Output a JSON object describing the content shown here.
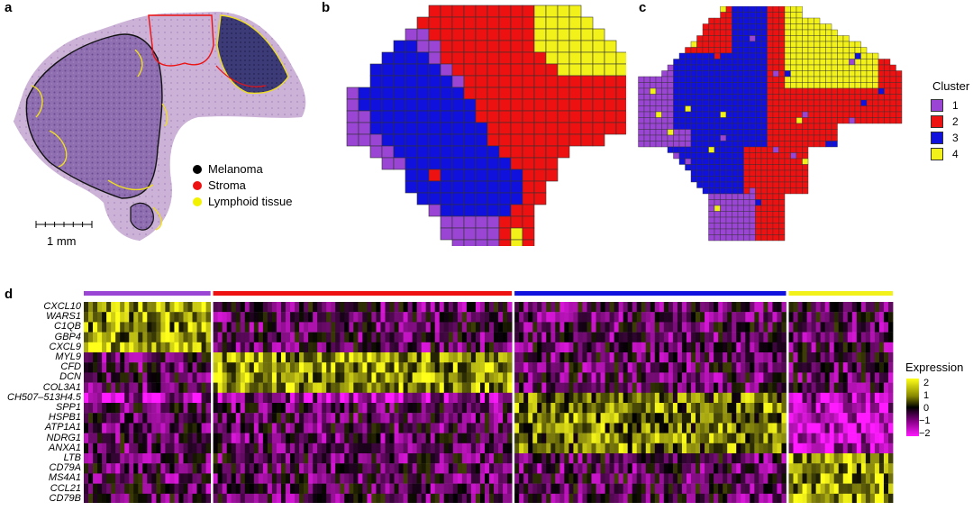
{
  "panels": {
    "a": "a",
    "b": "b",
    "c": "c",
    "d": "d"
  },
  "panel_a": {
    "legend": [
      {
        "label": "Melanoma",
        "color": "#000000"
      },
      {
        "label": "Stroma",
        "color": "#ee1111"
      },
      {
        "label": "Lymphoid tissue",
        "color": "#f2f200"
      }
    ],
    "scale_bar": "1 mm"
  },
  "cluster_legend": {
    "title": "Cluster",
    "items": [
      {
        "label": "1",
        "color": "#9a45d4"
      },
      {
        "label": "2",
        "color": "#ee1111"
      },
      {
        "label": "3",
        "color": "#1111dd"
      },
      {
        "label": "4",
        "color": "#f2f21a"
      }
    ]
  },
  "chart_data": {
    "type": "heatmap",
    "title": "",
    "genes": [
      "CXCL10",
      "WARS1",
      "C1QB",
      "GBP4",
      "CXCL9",
      "MYL9",
      "CFD",
      "DCN",
      "COL3A1",
      "CH507–513H4.5",
      "SPP1",
      "HSPB1",
      "ATP1A1",
      "NDRG1",
      "ANXA1",
      "LTB",
      "CD79A",
      "MS4A1",
      "CCL21",
      "CD79B"
    ],
    "clusters": [
      {
        "name": "1",
        "color": "#9a45d4",
        "cells": 28
      },
      {
        "name": "2",
        "color": "#ee1111",
        "cells": 66
      },
      {
        "name": "3",
        "color": "#1111dd",
        "cells": 60
      },
      {
        "name": "4",
        "color": "#f2f21a",
        "cells": 23
      }
    ],
    "gene_marker_cluster": [
      0,
      0,
      0,
      0,
      0,
      1,
      1,
      1,
      1,
      1,
      2,
      2,
      2,
      2,
      2,
      3,
      3,
      3,
      3,
      3
    ],
    "colorbar": {
      "title": "Expression",
      "ticks": [
        "2",
        "1",
        "0",
        "−1",
        "−2"
      ],
      "range": [
        -2,
        2
      ]
    }
  }
}
